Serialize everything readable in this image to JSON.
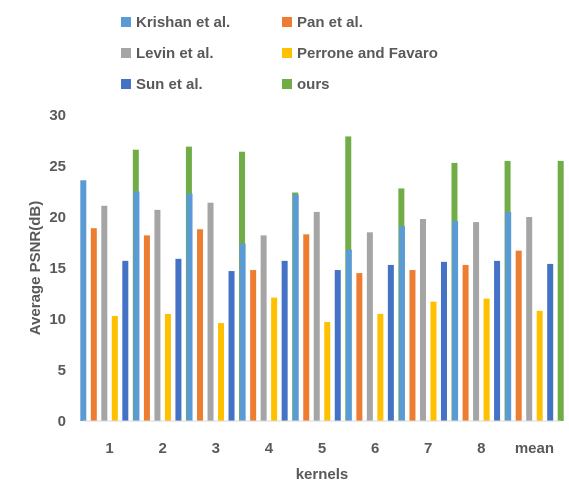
{
  "chart_data": {
    "type": "bar",
    "title": "",
    "xlabel": "kernels",
    "ylabel": "Average PSNR(dB)",
    "ylim": [
      0,
      30
    ],
    "yticks": [
      0,
      5,
      10,
      15,
      20,
      25,
      30
    ],
    "grid": false,
    "legend_position": "top",
    "categories": [
      "1",
      "2",
      "3",
      "4",
      "5",
      "6",
      "7",
      "8",
      "mean"
    ],
    "series": [
      {
        "name": "Krishan et al.",
        "color": "#5B9BD5",
        "values": [
          23.6,
          22.5,
          22.3,
          17.4,
          22.2,
          16.8,
          19.1,
          19.6,
          20.5
        ]
      },
      {
        "name": "Levin et al.",
        "color": "#A5A5A5",
        "values": [
          21.1,
          20.7,
          21.4,
          18.2,
          20.5,
          18.5,
          19.8,
          19.5,
          20.0
        ]
      },
      {
        "name": "Sun et al.",
        "color": "#4472C4",
        "values": [
          15.7,
          15.9,
          14.7,
          15.7,
          14.8,
          15.3,
          15.6,
          15.7,
          15.4
        ]
      },
      {
        "name": "Pan et al.",
        "color": "#ED7D31",
        "values": [
          18.9,
          18.2,
          18.8,
          14.8,
          18.3,
          14.5,
          14.8,
          15.3,
          16.7
        ]
      },
      {
        "name": "Perrone and Favaro",
        "color": "#FFC000",
        "values": [
          10.3,
          10.5,
          9.6,
          12.1,
          9.7,
          10.5,
          11.7,
          12.0,
          10.8
        ]
      },
      {
        "name": "ours",
        "color": "#70AD47",
        "values": [
          26.6,
          26.9,
          26.4,
          22.4,
          27.9,
          22.8,
          25.3,
          25.5,
          25.5
        ]
      }
    ],
    "bar_order": [
      "Krishan et al.",
      "Pan et al.",
      "Levin et al.",
      "Perrone and Favaro",
      "Sun et al.",
      "ours"
    ]
  }
}
